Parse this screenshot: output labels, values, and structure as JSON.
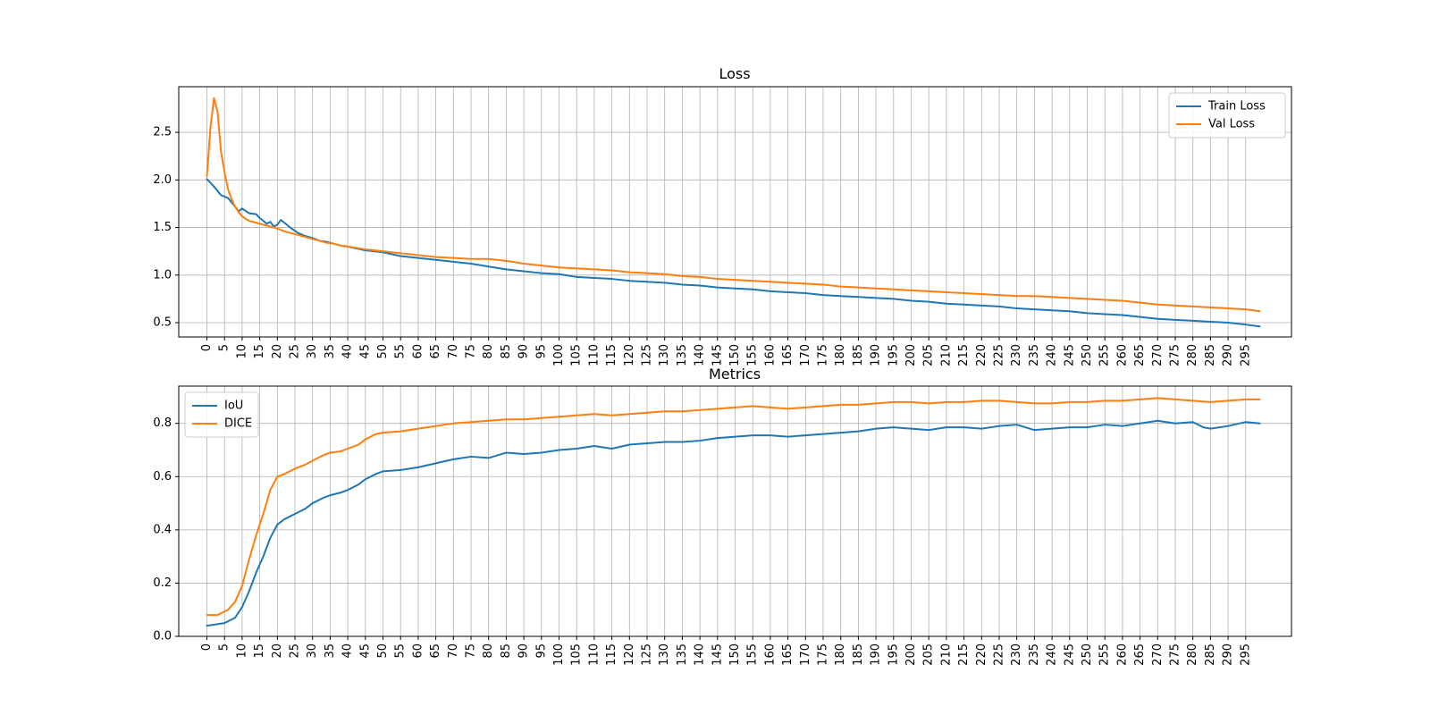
{
  "chart_data": [
    {
      "type": "line",
      "title": "Loss",
      "xlabel": "",
      "ylabel": "",
      "xlim": [
        -8,
        308
      ],
      "ylim": [
        0.35,
        2.98
      ],
      "x_ticks": [
        0,
        5,
        10,
        15,
        20,
        25,
        30,
        35,
        40,
        45,
        50,
        55,
        60,
        65,
        70,
        75,
        80,
        85,
        90,
        95,
        100,
        105,
        110,
        115,
        120,
        125,
        130,
        135,
        140,
        145,
        150,
        155,
        160,
        165,
        170,
        175,
        180,
        185,
        190,
        195,
        200,
        205,
        210,
        215,
        220,
        225,
        230,
        235,
        240,
        245,
        250,
        255,
        260,
        265,
        270,
        275,
        280,
        285,
        290,
        295
      ],
      "y_ticks": [
        0.5,
        1.0,
        1.5,
        2.0,
        2.5
      ],
      "y_tick_labels": [
        "0.5",
        "1.0",
        "1.5",
        "2.0",
        "2.5"
      ],
      "grid": true,
      "legend_position": "upper right",
      "series": [
        {
          "name": "Train Loss",
          "color": "#1f77b4",
          "x": [
            0,
            2,
            4,
            6,
            8,
            9,
            10,
            12,
            14,
            15,
            16,
            17,
            18,
            19,
            20,
            21,
            22,
            24,
            26,
            28,
            30,
            32,
            34,
            36,
            38,
            40,
            45,
            50,
            55,
            60,
            65,
            70,
            75,
            80,
            85,
            90,
            95,
            100,
            105,
            110,
            115,
            120,
            125,
            130,
            135,
            140,
            145,
            150,
            155,
            160,
            165,
            170,
            175,
            180,
            185,
            190,
            195,
            200,
            205,
            210,
            215,
            220,
            225,
            230,
            235,
            240,
            245,
            250,
            255,
            260,
            265,
            270,
            275,
            280,
            285,
            290,
            295,
            299
          ],
          "y": [
            2.01,
            1.93,
            1.84,
            1.81,
            1.72,
            1.67,
            1.7,
            1.65,
            1.64,
            1.6,
            1.57,
            1.54,
            1.56,
            1.51,
            1.53,
            1.58,
            1.55,
            1.49,
            1.44,
            1.41,
            1.39,
            1.36,
            1.35,
            1.33,
            1.31,
            1.3,
            1.26,
            1.24,
            1.2,
            1.18,
            1.16,
            1.14,
            1.12,
            1.09,
            1.06,
            1.04,
            1.02,
            1.01,
            0.98,
            0.97,
            0.96,
            0.94,
            0.93,
            0.92,
            0.9,
            0.89,
            0.87,
            0.86,
            0.85,
            0.83,
            0.82,
            0.81,
            0.79,
            0.78,
            0.77,
            0.76,
            0.75,
            0.73,
            0.72,
            0.7,
            0.69,
            0.68,
            0.67,
            0.65,
            0.64,
            0.63,
            0.62,
            0.6,
            0.59,
            0.58,
            0.56,
            0.54,
            0.53,
            0.52,
            0.51,
            0.5,
            0.48,
            0.46
          ]
        },
        {
          "name": "Val Loss",
          "color": "#ff7f0e",
          "x": [
            0,
            1,
            2,
            3,
            4,
            5,
            6,
            7,
            8,
            9,
            10,
            11,
            12,
            14,
            16,
            18,
            20,
            22,
            24,
            26,
            28,
            30,
            32,
            34,
            36,
            38,
            40,
            45,
            50,
            55,
            60,
            65,
            70,
            75,
            80,
            85,
            90,
            95,
            100,
            105,
            110,
            115,
            120,
            125,
            130,
            135,
            140,
            145,
            150,
            155,
            160,
            165,
            170,
            175,
            180,
            185,
            190,
            195,
            200,
            205,
            210,
            215,
            220,
            225,
            230,
            235,
            240,
            245,
            250,
            255,
            260,
            265,
            270,
            275,
            280,
            285,
            290,
            295,
            299
          ],
          "y": [
            2.04,
            2.55,
            2.86,
            2.72,
            2.3,
            2.08,
            1.9,
            1.8,
            1.72,
            1.66,
            1.62,
            1.59,
            1.57,
            1.55,
            1.53,
            1.51,
            1.49,
            1.46,
            1.44,
            1.42,
            1.4,
            1.38,
            1.36,
            1.34,
            1.33,
            1.31,
            1.3,
            1.27,
            1.25,
            1.23,
            1.21,
            1.19,
            1.18,
            1.17,
            1.17,
            1.15,
            1.12,
            1.1,
            1.08,
            1.07,
            1.06,
            1.05,
            1.03,
            1.02,
            1.01,
            0.99,
            0.98,
            0.96,
            0.95,
            0.94,
            0.93,
            0.92,
            0.91,
            0.9,
            0.88,
            0.87,
            0.86,
            0.85,
            0.84,
            0.83,
            0.82,
            0.81,
            0.8,
            0.79,
            0.78,
            0.78,
            0.77,
            0.76,
            0.75,
            0.74,
            0.73,
            0.71,
            0.69,
            0.68,
            0.67,
            0.66,
            0.65,
            0.64,
            0.62
          ]
        }
      ]
    },
    {
      "type": "line",
      "title": "Metrics",
      "xlabel": "",
      "ylabel": "",
      "xlim": [
        -8,
        308
      ],
      "ylim": [
        0.0,
        0.94
      ],
      "x_ticks": [
        0,
        5,
        10,
        15,
        20,
        25,
        30,
        35,
        40,
        45,
        50,
        55,
        60,
        65,
        70,
        75,
        80,
        85,
        90,
        95,
        100,
        105,
        110,
        115,
        120,
        125,
        130,
        135,
        140,
        145,
        150,
        155,
        160,
        165,
        170,
        175,
        180,
        185,
        190,
        195,
        200,
        205,
        210,
        215,
        220,
        225,
        230,
        235,
        240,
        245,
        250,
        255,
        260,
        265,
        270,
        275,
        280,
        285,
        290,
        295
      ],
      "y_ticks": [
        0.0,
        0.2,
        0.4,
        0.6,
        0.8
      ],
      "y_tick_labels": [
        "0.0",
        "0.2",
        "0.4",
        "0.6",
        "0.8"
      ],
      "grid": true,
      "legend_position": "upper left",
      "series": [
        {
          "name": "IoU",
          "color": "#1f77b4",
          "x": [
            0,
            5,
            8,
            10,
            12,
            14,
            16,
            18,
            20,
            22,
            25,
            28,
            30,
            33,
            35,
            38,
            40,
            43,
            45,
            48,
            50,
            55,
            60,
            65,
            70,
            75,
            80,
            85,
            90,
            95,
            100,
            105,
            110,
            115,
            120,
            125,
            130,
            135,
            140,
            145,
            150,
            155,
            160,
            165,
            170,
            175,
            180,
            185,
            190,
            195,
            200,
            205,
            210,
            215,
            220,
            225,
            230,
            235,
            240,
            245,
            250,
            255,
            260,
            265,
            270,
            275,
            280,
            283,
            285,
            290,
            295,
            299
          ],
          "y": [
            0.04,
            0.05,
            0.07,
            0.11,
            0.17,
            0.24,
            0.3,
            0.37,
            0.42,
            0.44,
            0.46,
            0.48,
            0.5,
            0.52,
            0.53,
            0.54,
            0.55,
            0.57,
            0.59,
            0.61,
            0.62,
            0.625,
            0.635,
            0.65,
            0.665,
            0.675,
            0.67,
            0.69,
            0.685,
            0.69,
            0.7,
            0.705,
            0.715,
            0.705,
            0.72,
            0.725,
            0.73,
            0.73,
            0.735,
            0.745,
            0.75,
            0.755,
            0.755,
            0.75,
            0.755,
            0.76,
            0.765,
            0.77,
            0.78,
            0.785,
            0.78,
            0.775,
            0.785,
            0.785,
            0.78,
            0.79,
            0.795,
            0.775,
            0.78,
            0.785,
            0.785,
            0.795,
            0.79,
            0.8,
            0.81,
            0.8,
            0.805,
            0.785,
            0.78,
            0.79,
            0.805,
            0.8
          ]
        },
        {
          "name": "DICE",
          "color": "#ff7f0e",
          "x": [
            0,
            3,
            6,
            8,
            10,
            12,
            14,
            16,
            18,
            20,
            22,
            25,
            28,
            30,
            33,
            35,
            38,
            40,
            43,
            45,
            48,
            50,
            55,
            60,
            65,
            70,
            75,
            80,
            85,
            90,
            95,
            100,
            105,
            110,
            115,
            120,
            125,
            130,
            135,
            140,
            145,
            150,
            155,
            160,
            165,
            170,
            175,
            180,
            185,
            190,
            195,
            200,
            205,
            210,
            215,
            220,
            225,
            230,
            235,
            240,
            245,
            250,
            255,
            260,
            265,
            270,
            275,
            280,
            285,
            290,
            295,
            299
          ],
          "y": [
            0.08,
            0.08,
            0.1,
            0.13,
            0.19,
            0.29,
            0.38,
            0.46,
            0.55,
            0.6,
            0.61,
            0.63,
            0.645,
            0.66,
            0.68,
            0.69,
            0.695,
            0.705,
            0.72,
            0.74,
            0.76,
            0.765,
            0.77,
            0.78,
            0.79,
            0.8,
            0.805,
            0.81,
            0.815,
            0.815,
            0.82,
            0.825,
            0.83,
            0.835,
            0.83,
            0.835,
            0.84,
            0.845,
            0.845,
            0.85,
            0.855,
            0.86,
            0.865,
            0.86,
            0.855,
            0.86,
            0.865,
            0.87,
            0.87,
            0.875,
            0.88,
            0.88,
            0.875,
            0.88,
            0.88,
            0.885,
            0.885,
            0.88,
            0.875,
            0.875,
            0.88,
            0.88,
            0.885,
            0.885,
            0.89,
            0.895,
            0.89,
            0.885,
            0.88,
            0.885,
            0.89,
            0.89
          ]
        }
      ]
    }
  ]
}
